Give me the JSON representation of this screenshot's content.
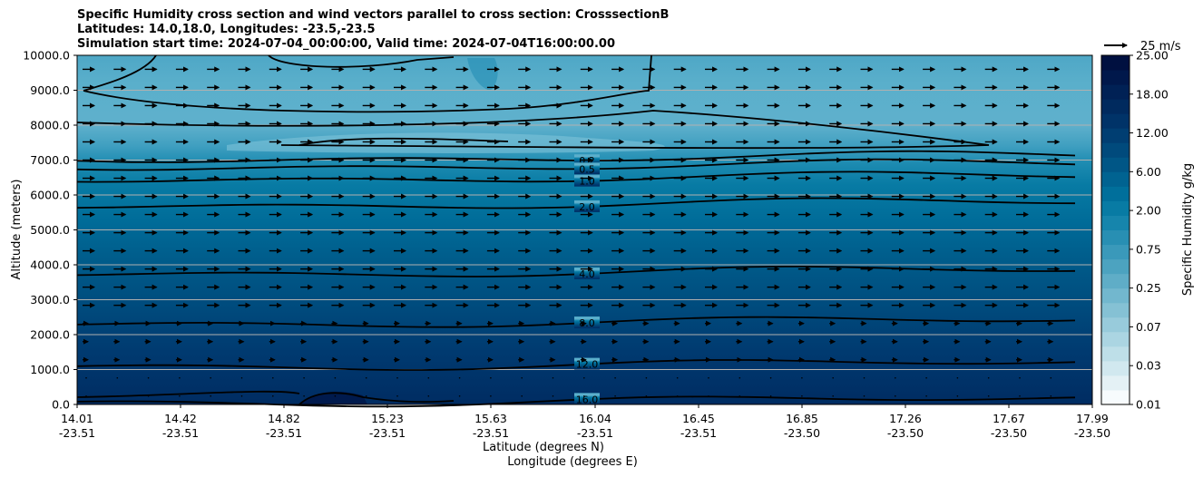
{
  "title_lines": [
    "Specific Humidity cross section and wind vectors parallel to cross section: CrosssectionB",
    "Latitudes: 14.0,18.0, Longitudes: -23.5,-23.5",
    "Simulation start time: 2024-07-04_00:00:00, Valid time: 2024-07-04T16:00:00.00"
  ],
  "chart_data": {
    "type": "heatmap",
    "title": "Specific Humidity cross section and wind vectors parallel to cross section: CrosssectionB",
    "ylabel": "Altitude (meters)",
    "xlabel_lines": [
      "Latitude (degrees N)",
      "Longitude (degrees E)"
    ],
    "ylim": [
      0,
      10000
    ],
    "y_ticks": [
      0,
      1000,
      2000,
      3000,
      4000,
      5000,
      6000,
      7000,
      8000,
      9000,
      10000
    ],
    "y_tick_labels": [
      "0.0",
      "1000.0",
      "2000.0",
      "3000.0",
      "4000.0",
      "5000.0",
      "6000.0",
      "7000.0",
      "8000.0",
      "9000.0",
      "10000.0"
    ],
    "x_ticks": [
      {
        "lat": "14.01",
        "lon": "-23.51"
      },
      {
        "lat": "14.42",
        "lon": "-23.51"
      },
      {
        "lat": "14.82",
        "lon": "-23.51"
      },
      {
        "lat": "15.23",
        "lon": "-23.51"
      },
      {
        "lat": "15.63",
        "lon": "-23.51"
      },
      {
        "lat": "16.04",
        "lon": "-23.51"
      },
      {
        "lat": "16.45",
        "lon": "-23.51"
      },
      {
        "lat": "16.85",
        "lon": "-23.50"
      },
      {
        "lat": "17.26",
        "lon": "-23.50"
      },
      {
        "lat": "17.67",
        "lon": "-23.50"
      },
      {
        "lat": "17.99",
        "lon": "-23.50"
      }
    ],
    "grid": "horizontal",
    "colorbar": {
      "label": "Specific Humidity g/kg",
      "tick_labels": [
        "0.01",
        "0.03",
        "0.07",
        "0.25",
        "0.75",
        "2.00",
        "6.00",
        "12.00",
        "18.00",
        "25.00"
      ],
      "colors": [
        "#f7fbfd",
        "#e4f1f5",
        "#d1e8ef",
        "#bedfe8",
        "#abd5e2",
        "#98cbdb",
        "#85c1d4",
        "#72b7ce",
        "#5fadc7",
        "#4ca3c0",
        "#3a99ba",
        "#288fb3",
        "#1685ac",
        "#087ba4",
        "#006f9b",
        "#006391",
        "#005686",
        "#004a7c",
        "#003e72",
        "#003368",
        "#002a5e",
        "#002155",
        "#00184b",
        "#001040"
      ]
    },
    "contours": [
      {
        "label": "0.2",
        "y": 7080
      },
      {
        "label": "0.5",
        "y": 6850
      },
      {
        "label": "1.0",
        "y": 6500
      },
      {
        "label": "2.0",
        "y": 5750
      },
      {
        "label": "4.0",
        "y": 3800
      },
      {
        "label": "8.0",
        "y": 2360
      },
      {
        "label": "12.0",
        "y": 1140
      },
      {
        "label": "16.0",
        "y": 100
      }
    ],
    "wind_reference": "25 m/s",
    "wind_direction": "parallel to cross section, eastward/northward"
  }
}
